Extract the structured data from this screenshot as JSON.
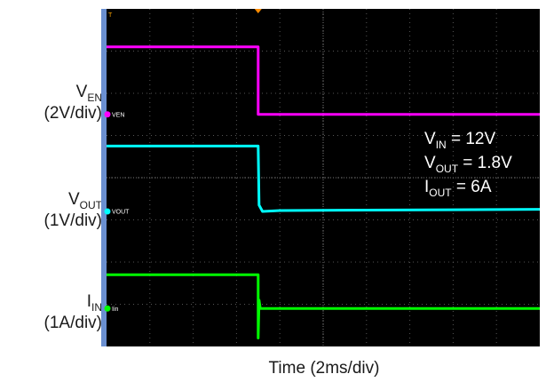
{
  "chart_data": {
    "type": "line",
    "xlabel": "Time (2ms/div)",
    "x_divisions": 10,
    "y_divisions": 8,
    "grid": true,
    "trigger_x_div": 3.5,
    "series": [
      {
        "name": "V_EN",
        "axis_label": {
          "main": "V",
          "sub": "EN",
          "scale": "(2V/div)"
        },
        "channel_tag": "VEN",
        "color": "#ff00ff",
        "x_div": [
          0,
          3.5,
          3.5,
          10
        ],
        "y_div": [
          7.1,
          7.1,
          5.5,
          5.5
        ],
        "ground_div": 5.5
      },
      {
        "name": "V_OUT",
        "axis_label": {
          "main": "V",
          "sub": "OUT",
          "scale": "(1V/div)"
        },
        "channel_tag": "VOUT",
        "color": "#00ffff",
        "x_div": [
          0,
          3.5,
          3.52,
          3.6,
          4.0,
          10
        ],
        "y_div": [
          4.75,
          4.75,
          3.35,
          3.2,
          3.22,
          3.25
        ],
        "ground_div": 3.2
      },
      {
        "name": "I_IN",
        "axis_label": {
          "main": "I",
          "sub": "IN",
          "scale": "(1A/div)"
        },
        "channel_tag": "Iin",
        "color": "#00ff00",
        "x_div": [
          0,
          3.5,
          3.5,
          3.52,
          3.55,
          10
        ],
        "y_div": [
          1.7,
          1.7,
          0.2,
          1.1,
          0.9,
          0.9
        ],
        "ground_div": 0.9
      }
    ],
    "annotations": [
      {
        "main": "V",
        "sub": "IN",
        "rest": " = 12V"
      },
      {
        "main": "V",
        "sub": "OUT",
        "rest": " = 1.8V"
      },
      {
        "main": "I",
        "sub": "OUT",
        "rest": " = 6A"
      }
    ],
    "trigger_marker": "T"
  }
}
